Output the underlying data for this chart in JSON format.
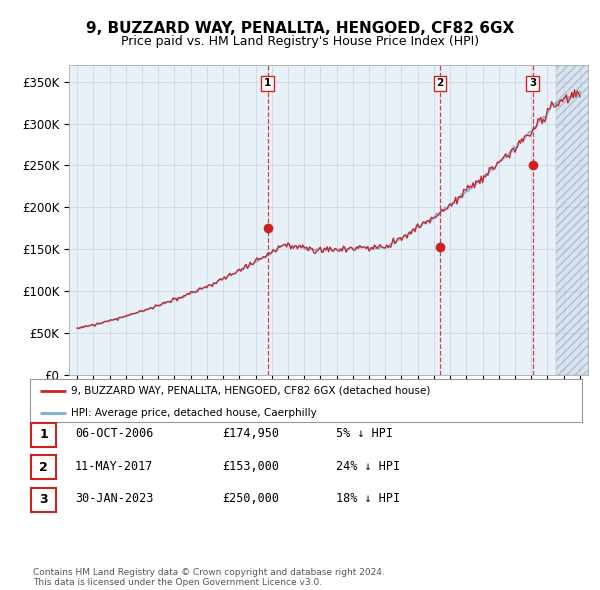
{
  "title": "9, BUZZARD WAY, PENALLTA, HENGOED, CF82 6GX",
  "subtitle": "Price paid vs. HM Land Registry's House Price Index (HPI)",
  "ylim": [
    0,
    370000
  ],
  "yticks": [
    0,
    50000,
    100000,
    150000,
    200000,
    250000,
    300000,
    350000
  ],
  "ytick_labels": [
    "£0",
    "£50K",
    "£100K",
    "£150K",
    "£200K",
    "£250K",
    "£300K",
    "£350K"
  ],
  "hpi_color": "#7aaddb",
  "price_color": "#cc2222",
  "dashed_line_color": "#cc2222",
  "plot_bg_color": "#e8f0f8",
  "grid_color": "#c8d4e0",
  "title_fontsize": 11,
  "subtitle_fontsize": 9,
  "sale_prices": [
    174950,
    153000,
    250000
  ],
  "sale_labels": [
    "1",
    "2",
    "3"
  ],
  "sale_hpi_pct": [
    "5% ↓ HPI",
    "24% ↓ HPI",
    "18% ↓ HPI"
  ],
  "sale_dates_str": [
    "06-OCT-2006",
    "11-MAY-2017",
    "30-JAN-2023"
  ],
  "sale_decimal_years": [
    2006.75,
    2017.36,
    2023.08
  ],
  "legend_label_price": "9, BUZZARD WAY, PENALLTA, HENGOED, CF82 6GX (detached house)",
  "legend_label_hpi": "HPI: Average price, detached house, Caerphilly",
  "footer_text": "Contains HM Land Registry data © Crown copyright and database right 2024.\nThis data is licensed under the Open Government Licence v3.0.",
  "xlim_start": 1994.5,
  "xlim_end": 2026.5,
  "hatch_start": 2024.5
}
